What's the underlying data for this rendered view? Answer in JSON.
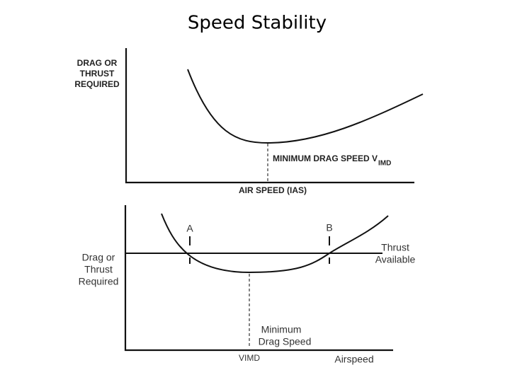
{
  "title": "Speed Stability",
  "top": {
    "y_label": [
      "DRAG OR",
      "THRUST",
      "REQUIRED"
    ],
    "marker_label": "MINIMUM DRAG SPEED V",
    "marker_subscript": "IMD",
    "x_label": "AIR SPEED (IAS)"
  },
  "bottom": {
    "y_label": [
      "Drag or",
      "Thrust",
      "Required"
    ],
    "point_a": "A",
    "point_b": "B",
    "line_label": [
      "Thrust",
      "Available"
    ],
    "marker_label": [
      "Minimum",
      "Drag Speed"
    ],
    "marker_tick": "VIMD",
    "x_label": "Airspeed"
  }
}
